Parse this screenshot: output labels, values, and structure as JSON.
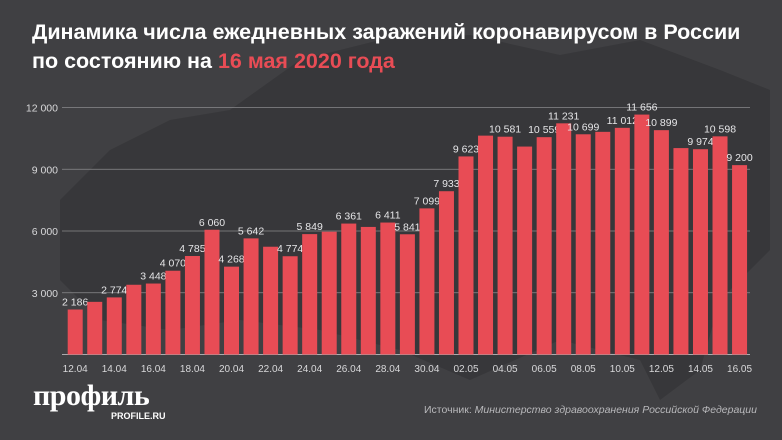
{
  "title": {
    "main": "Динамика числа ежедневных заражений коронавирусом в России по состоянию на",
    "highlight": "16 мая 2020 года"
  },
  "colors": {
    "bar": "#e84c55",
    "background": "#404043",
    "highlight": "#e84c55"
  },
  "chart_data": {
    "type": "bar",
    "categories": [
      "12.04",
      "13.04",
      "14.04",
      "15.04",
      "16.04",
      "17.04",
      "18.04",
      "19.04",
      "20.04",
      "21.04",
      "22.04",
      "23.04",
      "24.04",
      "25.04",
      "26.04",
      "27.04",
      "28.04",
      "29.04",
      "30.04",
      "01.05",
      "02.05",
      "03.05",
      "04.05",
      "05.05",
      "06.05",
      "07.05",
      "08.05",
      "09.05",
      "10.05",
      "11.05",
      "12.05",
      "13.05",
      "14.05",
      "15.05",
      "16.05"
    ],
    "values": [
      2186,
      2558,
      2774,
      3388,
      3448,
      4070,
      4785,
      6060,
      4268,
      5642,
      5236,
      4774,
      5849,
      5966,
      6361,
      6198,
      6411,
      5841,
      7099,
      7933,
      9623,
      10633,
      10581,
      10102,
      10559,
      11231,
      10699,
      10817,
      11012,
      11656,
      10899,
      10028,
      9974,
      10598,
      9200
    ],
    "value_labels": [
      "2 186",
      "",
      "2 774",
      "",
      "3 448",
      "4 070",
      "4 785",
      "6 060",
      "4 268",
      "5 642",
      "",
      "4 774",
      "5 849",
      "",
      "6 361",
      "",
      "6 411",
      "5 841",
      "7 099",
      "7 933",
      "9 623",
      "",
      "10 581",
      "",
      "10 559",
      "11 231",
      "10 699",
      "",
      "11 012",
      "11 656",
      "10 899",
      "",
      "9 974",
      "10 598",
      "9 200"
    ],
    "x_tick_labels": [
      "12.04",
      "",
      "14.04",
      "",
      "16.04",
      "",
      "18.04",
      "",
      "20.04",
      "",
      "22.04",
      "",
      "24.04",
      "",
      "26.04",
      "",
      "28.04",
      "",
      "30.04",
      "",
      "02.05",
      "",
      "04.05",
      "",
      "06.05",
      "",
      "08.05",
      "",
      "10.05",
      "",
      "12.05",
      "",
      "14.05",
      "",
      "16.05"
    ],
    "y_ticks": [
      3000,
      6000,
      9000,
      12000
    ],
    "y_tick_labels": [
      "3 000",
      "6 000",
      "9 000",
      "12 000"
    ],
    "ylim": [
      0,
      12000
    ],
    "grid": true,
    "title": "Динамика числа ежедневных заражений коронавирусом в России по состоянию на 16 мая 2020 года",
    "xlabel": "",
    "ylabel": ""
  },
  "logo": {
    "name": "профиль",
    "site": "PROFILE.RU"
  },
  "source": {
    "label": "Источник:",
    "text": "Министерство здравоохранения Российской Федерации"
  }
}
